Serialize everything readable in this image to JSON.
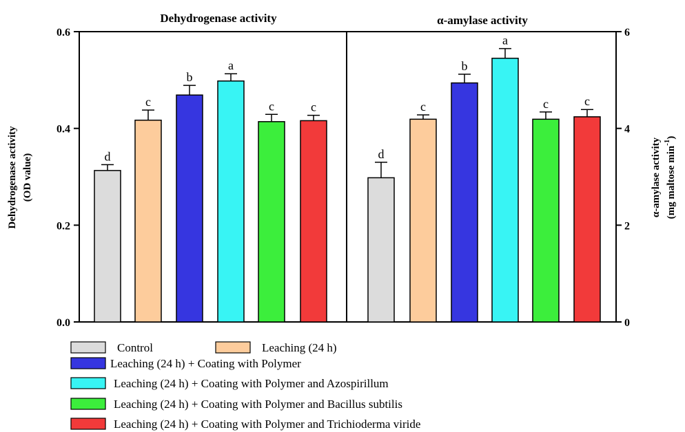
{
  "chart_data": {
    "type": "bar",
    "panels": [
      {
        "title": "Dehydrogenase activity",
        "ylabel_line1": "Dehydrogenase activity",
        "ylabel_line2": "(OD value)",
        "ylim": [
          0,
          0.6
        ],
        "ticks": [
          "0.0",
          "0.2",
          "0.4",
          "0.6"
        ],
        "tick_values": [
          0,
          0.2,
          0.4,
          0.6
        ],
        "values": [
          0.313,
          0.417,
          0.469,
          0.498,
          0.414,
          0.416
        ],
        "errors": [
          0.012,
          0.021,
          0.02,
          0.015,
          0.015,
          0.011
        ],
        "letters": [
          "d",
          "c",
          "b",
          "a",
          "c",
          "c"
        ]
      },
      {
        "title": "α-amylase activity",
        "ylabel_line1": "α-amylase activity",
        "ylabel_line2": "(mg maltose min",
        "ylabel_sup": "-1",
        "ylabel_close": ")",
        "ylim": [
          0,
          6
        ],
        "ticks": [
          "0",
          "2",
          "4",
          "6"
        ],
        "tick_values": [
          0,
          2,
          4,
          6
        ],
        "values": [
          2.98,
          4.19,
          4.94,
          5.45,
          4.19,
          4.24
        ],
        "errors": [
          0.32,
          0.09,
          0.18,
          0.2,
          0.15,
          0.15
        ],
        "letters": [
          "d",
          "c",
          "b",
          "a",
          "c",
          "c"
        ]
      }
    ],
    "series": [
      {
        "name": "Control",
        "color": "#dcdcdc"
      },
      {
        "name": "Leaching (24 h)",
        "color": "#fdcc9c"
      },
      {
        "name": "Leaching (24 h) + Coating with Polymer",
        "color": "#3636e0"
      },
      {
        "name": "Leaching (24 h) + Coating with Polymer and Azospirillum",
        "color": "#38f4f4"
      },
      {
        "name": "Leaching (24 h) + Coating with Polymer and Bacillus subtilis",
        "color": "#3cee3c"
      },
      {
        "name": "Leaching (24 h) + Coating with Polymer and Trichioderma viride",
        "color": "#f23a3a"
      }
    ]
  }
}
